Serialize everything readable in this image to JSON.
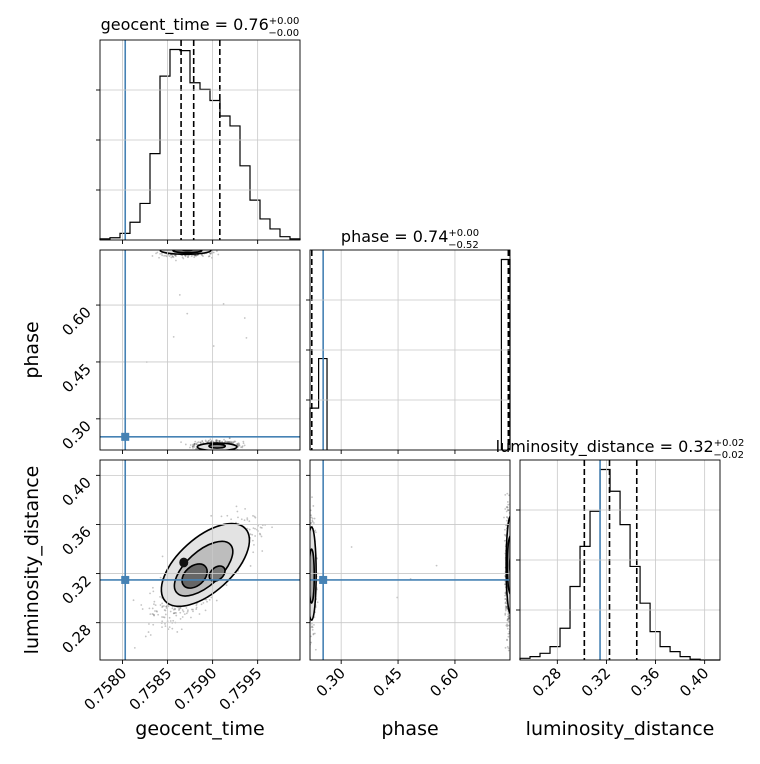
{
  "chart_data": {
    "type": "corner",
    "parameters": [
      "geocent_time",
      "phase",
      "luminosity_distance"
    ],
    "truths": {
      "geocent_time": 0.75803,
      "phase": 0.2525,
      "luminosity_distance": 0.3148
    },
    "truth_color": "#4682b4",
    "titles": {
      "geocent_time": {
        "name": "geocent_time",
        "median": "0.76",
        "plus": "+0.00",
        "minus": "−0.00"
      },
      "phase": {
        "name": "phase",
        "median": "0.74",
        "plus": "+0.00",
        "minus": "−0.52"
      },
      "luminosity_distance": {
        "name": "luminosity_distance",
        "median": "0.32",
        "plus": "+0.02",
        "minus": "−0.02"
      }
    },
    "ranges": {
      "geocent_time": [
        0.75775,
        0.75997
      ],
      "phase": [
        0.2178,
        0.7452
      ],
      "luminosity_distance": [
        0.2496,
        0.4125
      ]
    },
    "ticks": {
      "geocent_time": [
        "0.7580",
        "0.7585",
        "0.7590",
        "0.7595"
      ],
      "phase": [
        "0.30",
        "0.45",
        "0.60"
      ],
      "luminosity_distance": [
        "0.28",
        "0.32",
        "0.36",
        "0.40"
      ]
    },
    "quantiles": {
      "geocent_time": [
        0.75865,
        0.75879,
        0.75908
      ],
      "phase": [
        0.2225,
        0.7408,
        0.7437
      ],
      "luminosity_distance": [
        0.302,
        0.3225,
        0.3447
      ]
    },
    "histograms": {
      "geocent_time": {
        "edges_start": 0.75775,
        "bin_width": 0.000111,
        "counts": [
          1,
          2,
          6,
          16,
          33,
          78,
          148,
          172,
          171,
          142,
          136,
          126,
          112,
          103,
          67,
          36,
          19,
          10,
          3,
          1
        ]
      },
      "phase": {
        "bins": [
          [
            0.2178,
            0.2405,
            55
          ],
          [
            0.2405,
            0.2627,
            120
          ],
          [
            0.7225,
            0.7452,
            250
          ]
        ]
      },
      "luminosity_distance": {
        "edges_start": 0.2496,
        "bin_width": 0.00815,
        "counts": [
          2,
          4,
          8,
          16,
          38,
          88,
          136,
          178,
          228,
          202,
          162,
          112,
          68,
          34,
          16,
          10,
          4,
          1,
          0,
          0
        ]
      }
    },
    "grid": true,
    "x_axis_labels": [
      "geocent_time",
      "phase",
      "luminosity_distance"
    ],
    "y_axis_labels": [
      "phase",
      "luminosity_distance"
    ]
  }
}
